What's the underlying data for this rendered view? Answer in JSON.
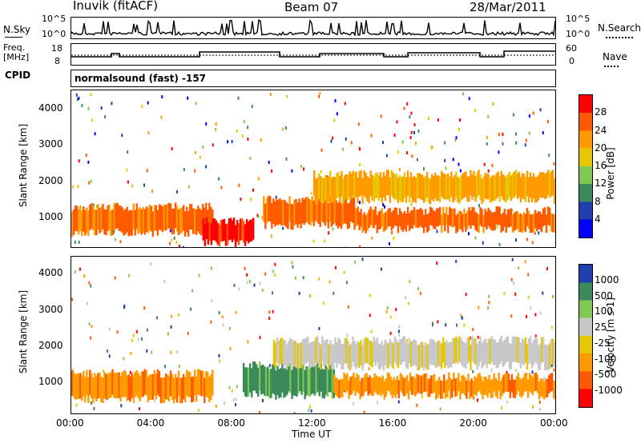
{
  "header": {
    "station": "Inuvik (fitACF)",
    "beam": "Beam 07",
    "date": "28/Mar/2011"
  },
  "strip_labels": {
    "nsky": "N.Sky",
    "nsky_ticks": [
      "10^5",
      "10^0"
    ],
    "freq": "Freq.",
    "freq_unit": "[MHz]",
    "freq_ticks": [
      "18",
      "8"
    ],
    "cpid": "CPID",
    "nsearch": "N.Search",
    "nsearch_ticks": [
      "10^5",
      "10^0"
    ],
    "nave": "Nave",
    "nave_ticks": [
      "60",
      "0"
    ],
    "cpid_text": "normalsound (fast) -157"
  },
  "chart_data": [
    {
      "type": "heatmap",
      "quantity": "Power",
      "ylabel": "Slant Range [km]",
      "ylim": [
        200,
        4500
      ],
      "yticks": [
        "1000",
        "2000",
        "3000",
        "4000"
      ],
      "colorbar_label": "Power [dB]",
      "colorbar_ticks": [
        "28",
        "24",
        "20",
        "16",
        "12",
        "8",
        "4"
      ],
      "colors": [
        "#ff0000",
        "#ff5a00",
        "#ff9b00",
        "#e6c800",
        "#7fc94f",
        "#3a8a5c",
        "#1f3fb0",
        "#0000ff"
      ],
      "bands": [
        {
          "range_km": [
            600,
            1300
          ],
          "value_db": 26,
          "hours": [
            0,
            7
          ]
        },
        {
          "range_km": [
            300,
            900
          ],
          "value_db": 27,
          "hours": [
            6.5,
            9
          ]
        },
        {
          "range_km": [
            800,
            1500
          ],
          "value_db": 26,
          "hours": [
            9.5,
            14
          ]
        },
        {
          "range_km": [
            700,
            1200
          ],
          "value_db": 24,
          "hours": [
            14,
            24
          ]
        },
        {
          "range_km": [
            1500,
            2200
          ],
          "value_db": 20,
          "hours": [
            12,
            24
          ]
        }
      ]
    },
    {
      "type": "heatmap",
      "quantity": "Velocity",
      "ylabel": "Slant Range [km]",
      "ylim": [
        200,
        4500
      ],
      "yticks": [
        "1000",
        "2000",
        "3000",
        "4000"
      ],
      "xlabel": "Time UT",
      "xticks": [
        "00:00",
        "04:00",
        "08:00",
        "12:00",
        "16:00",
        "20:00",
        "00:00"
      ],
      "colorbar_label": "Velocity [m s-1]",
      "colorbar_ticks": [
        "1000",
        "500",
        "100",
        "25",
        "-25",
        "-100",
        "-500",
        "-1000"
      ],
      "colors": [
        "#1f3fb0",
        "#3a8a5c",
        "#7fc94f",
        "#c8c8c8",
        "#e6c800",
        "#ff9b00",
        "#ff5a00",
        "#ff0000"
      ],
      "bands": [
        {
          "range_km": [
            600,
            1300
          ],
          "value_ms": -150,
          "hours": [
            0,
            7
          ]
        },
        {
          "range_km": [
            700,
            1500
          ],
          "value_ms": 200,
          "hours": [
            8.5,
            13
          ]
        },
        {
          "range_km": [
            700,
            1200
          ],
          "value_ms": -150,
          "hours": [
            13,
            24
          ]
        },
        {
          "range_km": [
            1500,
            2200
          ],
          "value_ms": 0,
          "hours": [
            10,
            24
          ]
        }
      ]
    }
  ]
}
